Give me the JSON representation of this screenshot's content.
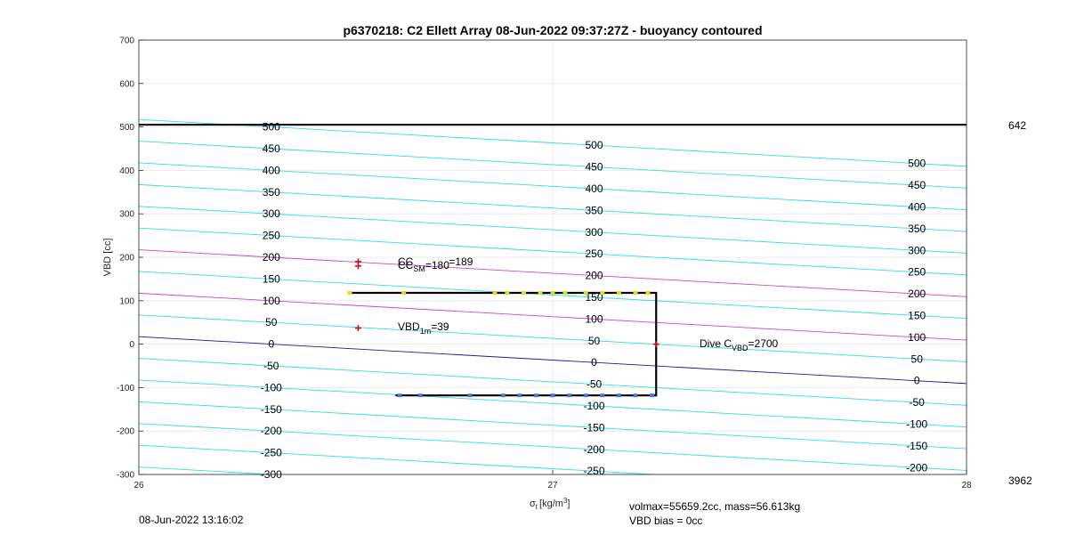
{
  "chart_data": {
    "type": "line",
    "title": "p6370218: C2 Ellett Array 08-Jun-2022 09:37:27Z - buoyancy contoured",
    "xlabel_main": "σ",
    "xlabel_sub": "t",
    "xlabel_unit": "[kg/m",
    "xlabel_sup": "3",
    "xlabel_close": "]",
    "ylabel": "VBD [cc]",
    "xlim": [
      26,
      28
    ],
    "ylim": [
      -300,
      700
    ],
    "xticks": [
      "26",
      "27",
      "28"
    ],
    "yticks": [
      "-300",
      "-200",
      "-100",
      "0",
      "100",
      "200",
      "300",
      "400",
      "500",
      "600",
      "700"
    ],
    "grid": true,
    "contour_levels": [
      -300,
      -250,
      -200,
      -150,
      -100,
      -50,
      0,
      50,
      100,
      150,
      200,
      250,
      300,
      350,
      400,
      450,
      500
    ],
    "contour_slope": -54,
    "highlight_levels": [
      {
        "level": 0,
        "color": "#1a1aa0"
      },
      {
        "level": 100,
        "color": "#cc44cc"
      },
      {
        "level": 200,
        "color": "#cc44cc"
      }
    ],
    "contour_color": "#33dddd",
    "contour_label_columns": [
      {
        "x": 26.32,
        "levels": [
          "-300",
          "-250",
          "-200",
          "-150",
          "-100",
          "-50",
          "0",
          "50",
          "100",
          "150",
          "200",
          "250",
          "300",
          "350",
          "400",
          "450",
          "500"
        ]
      },
      {
        "x": 27.1,
        "levels": [
          "-250",
          "-200",
          "-150",
          "-100",
          "-50",
          "0",
          "50",
          "100",
          "150",
          "200",
          "250",
          "300",
          "350",
          "400",
          "450",
          "500"
        ]
      },
      {
        "x": 27.88,
        "levels": [
          "-200",
          "-150",
          "-100",
          "-50",
          "0",
          "50",
          "100",
          "150",
          "200",
          "250",
          "300",
          "350",
          "400",
          "450",
          "500"
        ]
      }
    ],
    "hline": {
      "y": 505,
      "label": "642",
      "color": "#000000"
    },
    "bottom_right_label": "3962",
    "dive_path": {
      "color": "#000000",
      "points": [
        [
          26.51,
          118
        ],
        [
          27.25,
          118
        ],
        [
          27.25,
          -118
        ],
        [
          26.62,
          -118
        ]
      ]
    },
    "upper_points": {
      "color": "#dddd22",
      "x": [
        26.51,
        26.64,
        26.86,
        26.89,
        26.93,
        26.97,
        27.0,
        27.03,
        27.08,
        27.12,
        27.16,
        27.2,
        27.23
      ],
      "y": 118
    },
    "lower_points": {
      "color": "#4477dd",
      "x": [
        26.63,
        26.68,
        26.8,
        26.88,
        26.92,
        26.96,
        27.0,
        27.04,
        27.08,
        27.12,
        27.16,
        27.2,
        27.24
      ],
      "y": -118
    },
    "markers": [
      {
        "x": 26.53,
        "y": 190,
        "color": "#cc1111"
      },
      {
        "x": 26.53,
        "y": 180,
        "color": "#cc1111"
      },
      {
        "x": 26.53,
        "y": 37,
        "color": "#cc1111"
      },
      {
        "x": 27.25,
        "y": 0,
        "color": "#cc1111"
      }
    ],
    "annotations": {
      "cc_line1": "CC",
      "cc_line1_rest": "=189",
      "cc_line2": "CC",
      "cc_line2_sub": "SM",
      "cc_line2_rest": "=180",
      "vbd_main": "VBD",
      "vbd_sub": "1m",
      "vbd_rest": "=39",
      "dive_main": "Dive C",
      "dive_sub": "VBD",
      "dive_rest": "=2700"
    }
  },
  "footer": {
    "timestamp": "08-Jun-2022 13:16:02",
    "volmax_line": "volmax=55659.2cc, mass=56.613kg",
    "bias_line": "VBD bias = 0cc"
  }
}
